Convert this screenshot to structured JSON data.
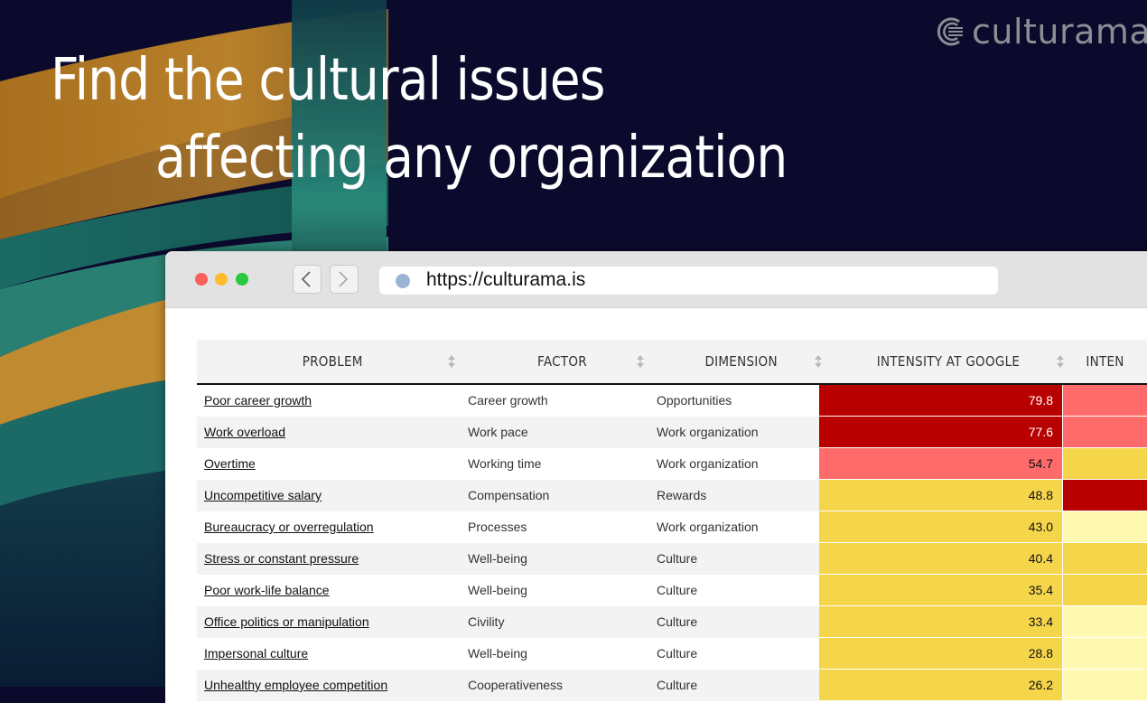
{
  "headline": {
    "line1": "Find the cultural issues",
    "line2": "affecting any organization"
  },
  "logo": {
    "text": "culturama",
    "icon": "culturama-logo-icon",
    "color": "#8d8d94"
  },
  "browser": {
    "url": "https://culturama.is",
    "back_icon": "chevron-left-icon",
    "forward_icon": "chevron-right-icon"
  },
  "table": {
    "columns": [
      "PROBLEM",
      "FACTOR",
      "DIMENSION",
      "INTENSITY AT GOOGLE",
      "INTEN"
    ],
    "colors": {
      "dark_red": "#b90000",
      "light_red": "#ff6b6b",
      "yellow": "#f5d54a",
      "pale_yellow": "#fff8b0"
    },
    "rows": [
      {
        "problem": "Poor career growth",
        "factor": "Career growth",
        "dimension": "Opportunities",
        "intensity": "79.8",
        "color": "#b90000",
        "next_color": "#ff6b6b"
      },
      {
        "problem": "Work overload",
        "factor": "Work pace",
        "dimension": "Work organization",
        "intensity": "77.6",
        "color": "#b90000",
        "next_color": "#ff6b6b"
      },
      {
        "problem": "Overtime",
        "factor": "Working time",
        "dimension": "Work organization",
        "intensity": "54.7",
        "color": "#ff6b6b",
        "next_color": "#f5d54a"
      },
      {
        "problem": "Uncompetitive salary",
        "factor": "Compensation",
        "dimension": "Rewards",
        "intensity": "48.8",
        "color": "#f5d54a",
        "next_color": "#b90000"
      },
      {
        "problem": "Bureaucracy or overregulation",
        "factor": "Processes",
        "dimension": "Work organization",
        "intensity": "43.0",
        "color": "#f5d54a",
        "next_color": "#fff8b0"
      },
      {
        "problem": "Stress or constant pressure",
        "factor": "Well-being",
        "dimension": "Culture",
        "intensity": "40.4",
        "color": "#f5d54a",
        "next_color": "#f5d54a"
      },
      {
        "problem": "Poor work-life balance",
        "factor": "Well-being",
        "dimension": "Culture",
        "intensity": "35.4",
        "color": "#f5d54a",
        "next_color": "#f5d54a"
      },
      {
        "problem": "Office politics or manipulation",
        "factor": "Civility",
        "dimension": "Culture",
        "intensity": "33.4",
        "color": "#f5d54a",
        "next_color": "#fff8b0"
      },
      {
        "problem": "Impersonal culture",
        "factor": "Well-being",
        "dimension": "Culture",
        "intensity": "28.8",
        "color": "#f5d54a",
        "next_color": "#fff8b0"
      },
      {
        "problem": "Unhealthy employee competition",
        "factor": "Cooperativeness",
        "dimension": "Culture",
        "intensity": "26.2",
        "color": "#f5d54a",
        "next_color": "#fff8b0"
      }
    ]
  }
}
